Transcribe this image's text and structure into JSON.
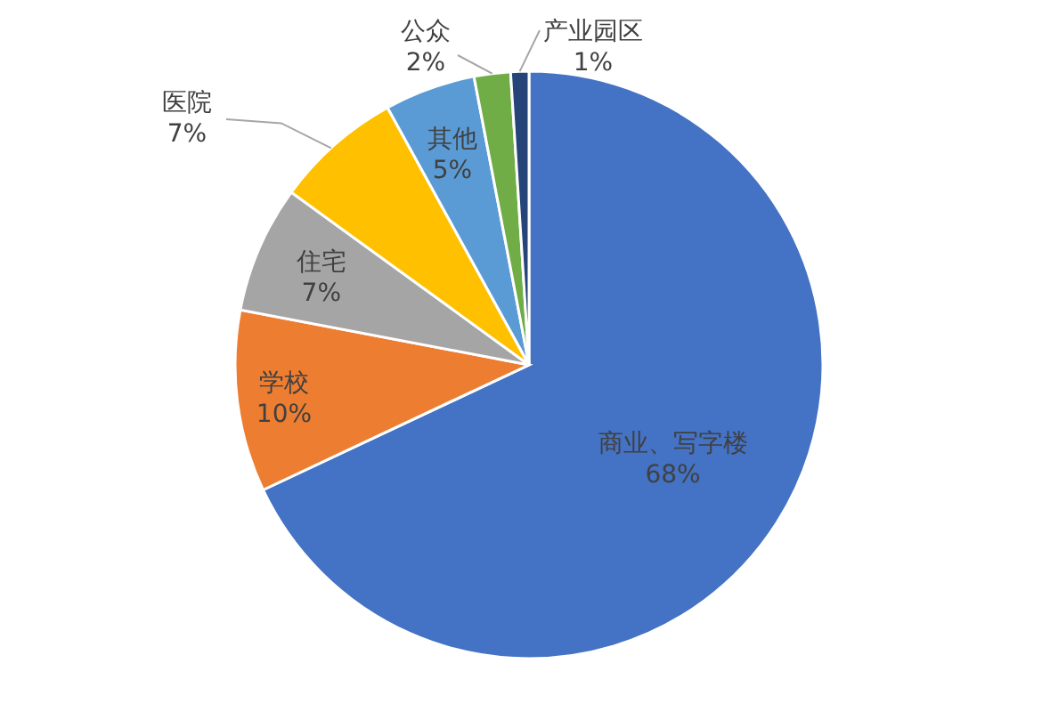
{
  "chart_data": {
    "type": "pie",
    "categories": [
      "商业、写字楼",
      "学校",
      "住宅",
      "医院",
      "其他",
      "公众",
      "产业园区"
    ],
    "values": [
      68,
      10,
      7,
      7,
      5,
      2,
      1
    ],
    "colors": [
      "#4472c4",
      "#ed7d31",
      "#a5a5a5",
      "#ffc000",
      "#5b9bd5",
      "#70ad47",
      "#264478"
    ],
    "value_labels": [
      "68%",
      "10%",
      "7%",
      "7%",
      "5%",
      "2%",
      "1%"
    ]
  }
}
